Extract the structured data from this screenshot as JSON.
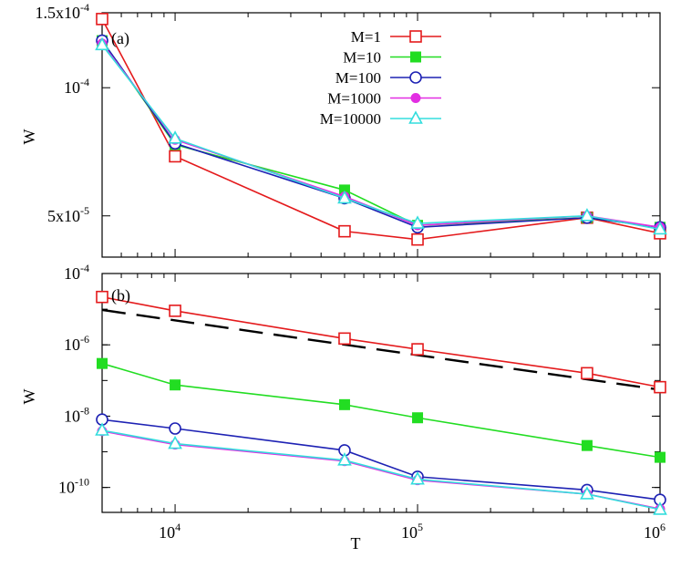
{
  "chart_data": [
    {
      "type": "line",
      "panel_label": "(a)",
      "xlabel": "",
      "ylabel": "W",
      "xscale": "log",
      "yscale": "log",
      "xlim": [
        5000,
        1000000
      ],
      "ylim": [
        4e-05,
        0.00015
      ],
      "yticks": [
        {
          "value": 0.00015,
          "base": "1.5x10",
          "exp": "-4"
        },
        {
          "value": 0.0001,
          "base": "10",
          "exp": "-4"
        },
        {
          "value": 5e-05,
          "base": "5x10",
          "exp": "-5"
        }
      ],
      "legend_position": "top-center",
      "x": [
        5000,
        10000,
        50000,
        100000,
        500000,
        1000000
      ],
      "series": [
        {
          "name": "M=1",
          "color": "#e41a1c",
          "marker": "open-square",
          "values": [
            0.000145,
            6.9e-05,
            4.6e-05,
            4.4e-05,
            4.95e-05,
            4.55e-05
          ]
        },
        {
          "name": "M=10",
          "color": "#22dd22",
          "marker": "filled-square",
          "values": [
            0.000129,
            7.35e-05,
            5.75e-05,
            4.75e-05,
            4.95e-05,
            4.7e-05
          ]
        },
        {
          "name": "M=100",
          "color": "#1e22b4",
          "marker": "open-circle",
          "values": [
            0.000129,
            7.4e-05,
            5.5e-05,
            4.7e-05,
            4.95e-05,
            4.7e-05
          ]
        },
        {
          "name": "M=1000",
          "color": "#e22ee2",
          "marker": "filled-circle",
          "values": [
            0.000127,
            7.55e-05,
            5.55e-05,
            4.75e-05,
            5e-05,
            4.7e-05
          ]
        },
        {
          "name": "M=10000",
          "color": "#33dddd",
          "marker": "open-triangle",
          "values": [
            0.000126,
            7.6e-05,
            5.5e-05,
            4.8e-05,
            5e-05,
            4.65e-05
          ]
        }
      ]
    },
    {
      "type": "line",
      "panel_label": "(b)",
      "xlabel": "T",
      "ylabel": "W",
      "xscale": "log",
      "yscale": "log",
      "xlim": [
        5000,
        1000000
      ],
      "ylim": [
        2e-11,
        0.0001
      ],
      "xticks": [
        {
          "value": 10000,
          "base": "10",
          "exp": "4"
        },
        {
          "value": 100000,
          "base": "10",
          "exp": "5"
        },
        {
          "value": 1000000,
          "base": "10",
          "exp": "6"
        }
      ],
      "yticks": [
        {
          "value": 0.0001,
          "base": "10",
          "exp": "-4"
        },
        {
          "value": 1e-06,
          "base": "10",
          "exp": "-6"
        },
        {
          "value": 1e-08,
          "base": "10",
          "exp": "-8"
        },
        {
          "value": 1e-10,
          "base": "10",
          "exp": "-10"
        }
      ],
      "x": [
        5000,
        10000,
        50000,
        100000,
        500000,
        1000000
      ],
      "series": [
        {
          "name": "M=1",
          "color": "#e41a1c",
          "marker": "open-square",
          "values": [
            2.2e-05,
            9e-06,
            1.5e-06,
            7.5e-07,
            1.6e-07,
            6.5e-08
          ]
        },
        {
          "name": "M=10",
          "color": "#22dd22",
          "marker": "filled-square",
          "values": [
            3e-07,
            7.5e-08,
            2.1e-08,
            9e-09,
            1.5e-09,
            7e-10
          ]
        },
        {
          "name": "M=100",
          "color": "#1e22b4",
          "marker": "open-circle",
          "values": [
            8e-09,
            4.5e-09,
            1.1e-09,
            2e-10,
            8.5e-11,
            4.5e-11
          ]
        },
        {
          "name": "M=1000",
          "color": "#e22ee2",
          "marker": "filled-circle",
          "values": [
            3.8e-09,
            1.6e-09,
            5.5e-10,
            1.6e-10,
            6.5e-11,
            2.5e-11
          ]
        },
        {
          "name": "M=10000",
          "color": "#33dddd",
          "marker": "open-triangle",
          "values": [
            4e-09,
            1.7e-09,
            5.8e-10,
            1.7e-10,
            6.5e-11,
            2.4e-11
          ]
        }
      ],
      "reference_line": {
        "style": "dashed",
        "color": "#000000",
        "x": [
          5000,
          1000000
        ],
        "values": [
          9.5e-06,
          5.5e-08
        ]
      }
    }
  ]
}
